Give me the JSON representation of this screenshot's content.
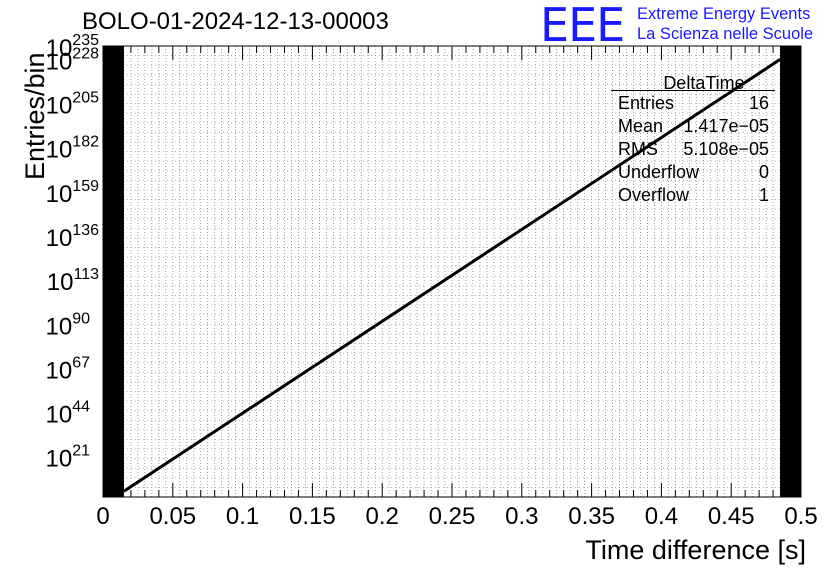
{
  "title": "BOLO-01-2024-12-13-00003",
  "logo": {
    "mark": "EEE",
    "line1": "Extreme Energy Events",
    "line2": "La Scienza nelle Scuole",
    "color": "#1a1aff"
  },
  "stats": {
    "name": "DeltaTime",
    "rows": [
      {
        "label": "Entries",
        "value": "16"
      },
      {
        "label": "Mean",
        "value": "1.417e−05"
      },
      {
        "label": "RMS",
        "value": "5.108e−05"
      },
      {
        "label": "Underflow",
        "value": "0"
      },
      {
        "label": "Overflow",
        "value": "1"
      }
    ]
  },
  "chart_data": {
    "type": "line",
    "title": "BOLO-01-2024-12-13-00003",
    "xlabel": "Time difference [s]",
    "ylabel": "Entries/bin",
    "xlim": [
      0,
      0.5
    ],
    "ylog": true,
    "ylim_exponent": [
      0,
      235
    ],
    "x_ticks": [
      "0",
      "0.05",
      "0.1",
      "0.15",
      "0.2",
      "0.25",
      "0.3",
      "0.35",
      "0.4",
      "0.45",
      "0.5"
    ],
    "y_ticks": [
      {
        "base": "10",
        "exp": "21",
        "v": 21
      },
      {
        "base": "10",
        "exp": "44",
        "v": 44
      },
      {
        "base": "10",
        "exp": "67",
        "v": 67
      },
      {
        "base": "10",
        "exp": "90",
        "v": 90
      },
      {
        "base": "10",
        "exp": "113",
        "v": 113
      },
      {
        "base": "10",
        "exp": "136",
        "v": 136
      },
      {
        "base": "10",
        "exp": "159",
        "v": 159
      },
      {
        "base": "10",
        "exp": "182",
        "v": 182
      },
      {
        "base": "10",
        "exp": "205",
        "v": 205
      },
      {
        "base": "10",
        "exp": "228",
        "v": 228
      },
      {
        "base": "10",
        "exp": "235",
        "v": 235
      }
    ],
    "grid": true,
    "series": [
      {
        "x": [
          0.015,
          0.485
        ],
        "log10_y": [
          3,
          228
        ]
      }
    ],
    "filled_edge_bins": [
      [
        0,
        0.015
      ],
      [
        0.485,
        0.5
      ]
    ]
  }
}
